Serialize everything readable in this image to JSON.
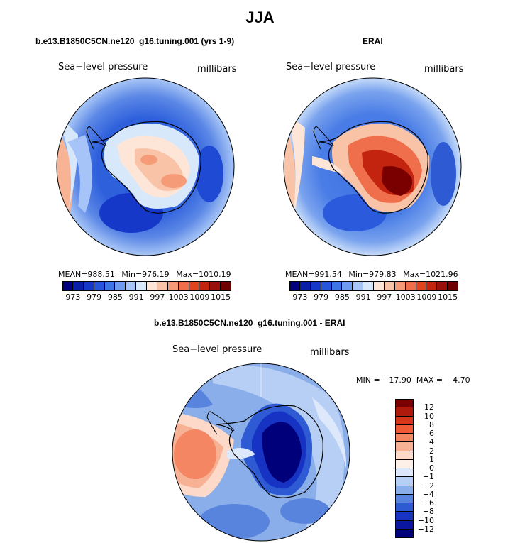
{
  "figure_title": "JJA",
  "panels": {
    "model": {
      "title": "b.e13.B1850C5CN.ne120_g16.tuning.001 (yrs 1-9)",
      "variable_label": "Sea−level pressure",
      "units_label": "millibars",
      "stats": {
        "mean_label": "MEAN=",
        "mean": "988.51",
        "min_label": "Min=",
        "min": "976.19",
        "max_label": "Max=",
        "max": "1010.19"
      }
    },
    "obs": {
      "title": "ERAI",
      "variable_label": "Sea−level pressure",
      "units_label": "millibars",
      "stats": {
        "mean_label": "MEAN=",
        "mean": "991.54",
        "min_label": "Min=",
        "min": "979.83",
        "max_label": "Max=",
        "max": "1021.96"
      }
    },
    "diff": {
      "title": "b.e13.B1850C5CN.ne120_g16.tuning.001 - ERAI",
      "variable_label": "Sea−level pressure",
      "units_label": "millibars",
      "min_max_text": "MIN = −17.90  MAX =    4.70"
    }
  },
  "colorbars": {
    "abs_labels": [
      "973",
      "979",
      "985",
      "991",
      "997",
      "1003",
      "1009",
      "1015"
    ],
    "abs_colors": [
      "#00007f",
      "#0a1fa8",
      "#1638c8",
      "#2756dd",
      "#3d74e6",
      "#6e9af0",
      "#a6c4f7",
      "#d8e8fb",
      "#fde6d8",
      "#f9c3a7",
      "#f59b78",
      "#ef6f4c",
      "#e0431e",
      "#c3240f",
      "#9a100a",
      "#6e0000"
    ],
    "diff_labels": [
      "12",
      "10",
      "8",
      "6",
      "4",
      "2",
      "1",
      "0",
      "−1",
      "−2",
      "−4",
      "−6",
      "−8",
      "−10",
      "−12"
    ],
    "diff_colors": [
      "#7a0000",
      "#b01a0c",
      "#d8361a",
      "#f05a34",
      "#f58663",
      "#f7b296",
      "#fcd9c8",
      "#fdf0e8",
      "#dde9fb",
      "#b8cff5",
      "#8aaee9",
      "#5984dd",
      "#2e5bd3",
      "#1633c4",
      "#0a16a0",
      "#00007a"
    ]
  }
}
